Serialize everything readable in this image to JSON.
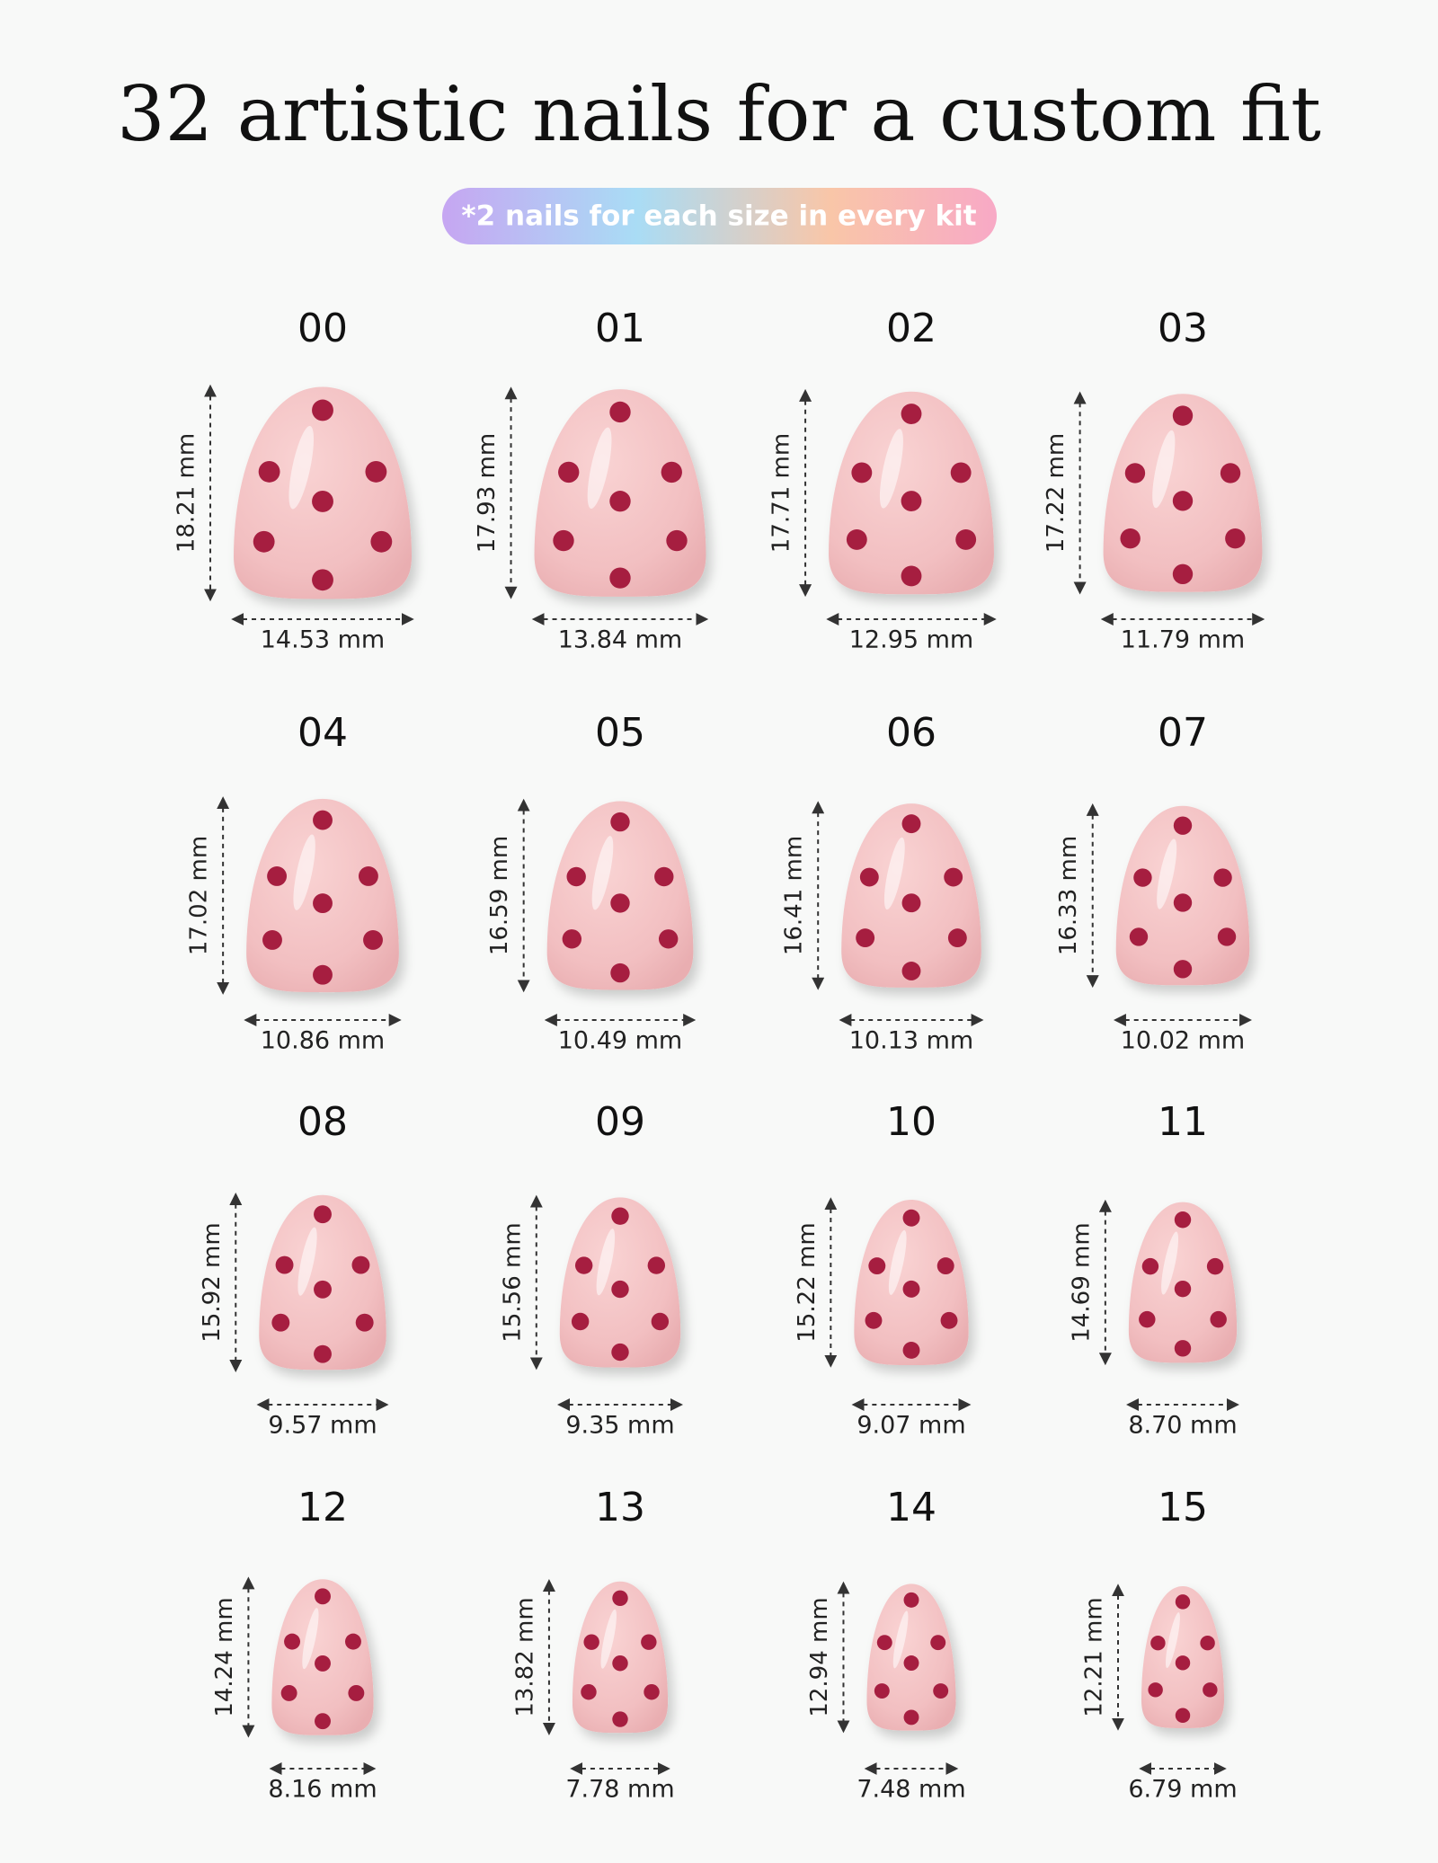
{
  "header": {
    "title": "32 artistic nails for a custom fit",
    "badge": "*2 nails for each size in every kit"
  },
  "sizes": [
    {
      "label": "00",
      "length": "18.21 mm",
      "width": "14.53 mm"
    },
    {
      "label": "01",
      "length": "17.93 mm",
      "width": "13.84 mm"
    },
    {
      "label": "02",
      "length": "17.71 mm",
      "width": "12.95 mm"
    },
    {
      "label": "03",
      "length": "17.22 mm",
      "width": "11.79 mm"
    },
    {
      "label": "04",
      "length": "17.02 mm",
      "width": "10.86 mm"
    },
    {
      "label": "05",
      "length": "16.59 mm",
      "width": "10.49 mm"
    },
    {
      "label": "06",
      "length": "16.41 mm",
      "width": "10.13 mm"
    },
    {
      "label": "07",
      "length": "16.33 mm",
      "width": "10.02 mm"
    },
    {
      "label": "08",
      "length": "15.92 mm",
      "width": "9.57 mm"
    },
    {
      "label": "09",
      "length": "15.56 mm",
      "width": "9.35 mm"
    },
    {
      "label": "10",
      "length": "15.22 mm",
      "width": "9.07 mm"
    },
    {
      "label": "11",
      "length": "14.69 mm",
      "width": "8.70 mm"
    },
    {
      "label": "12",
      "length": "14.24 mm",
      "width": "8.16 mm"
    },
    {
      "label": "13",
      "length": "13.82 mm",
      "width": "7.78 mm"
    },
    {
      "label": "14",
      "length": "12.94 mm",
      "width": "7.48 mm"
    },
    {
      "label": "15",
      "length": "12.21 mm",
      "width": "6.79 mm"
    }
  ]
}
